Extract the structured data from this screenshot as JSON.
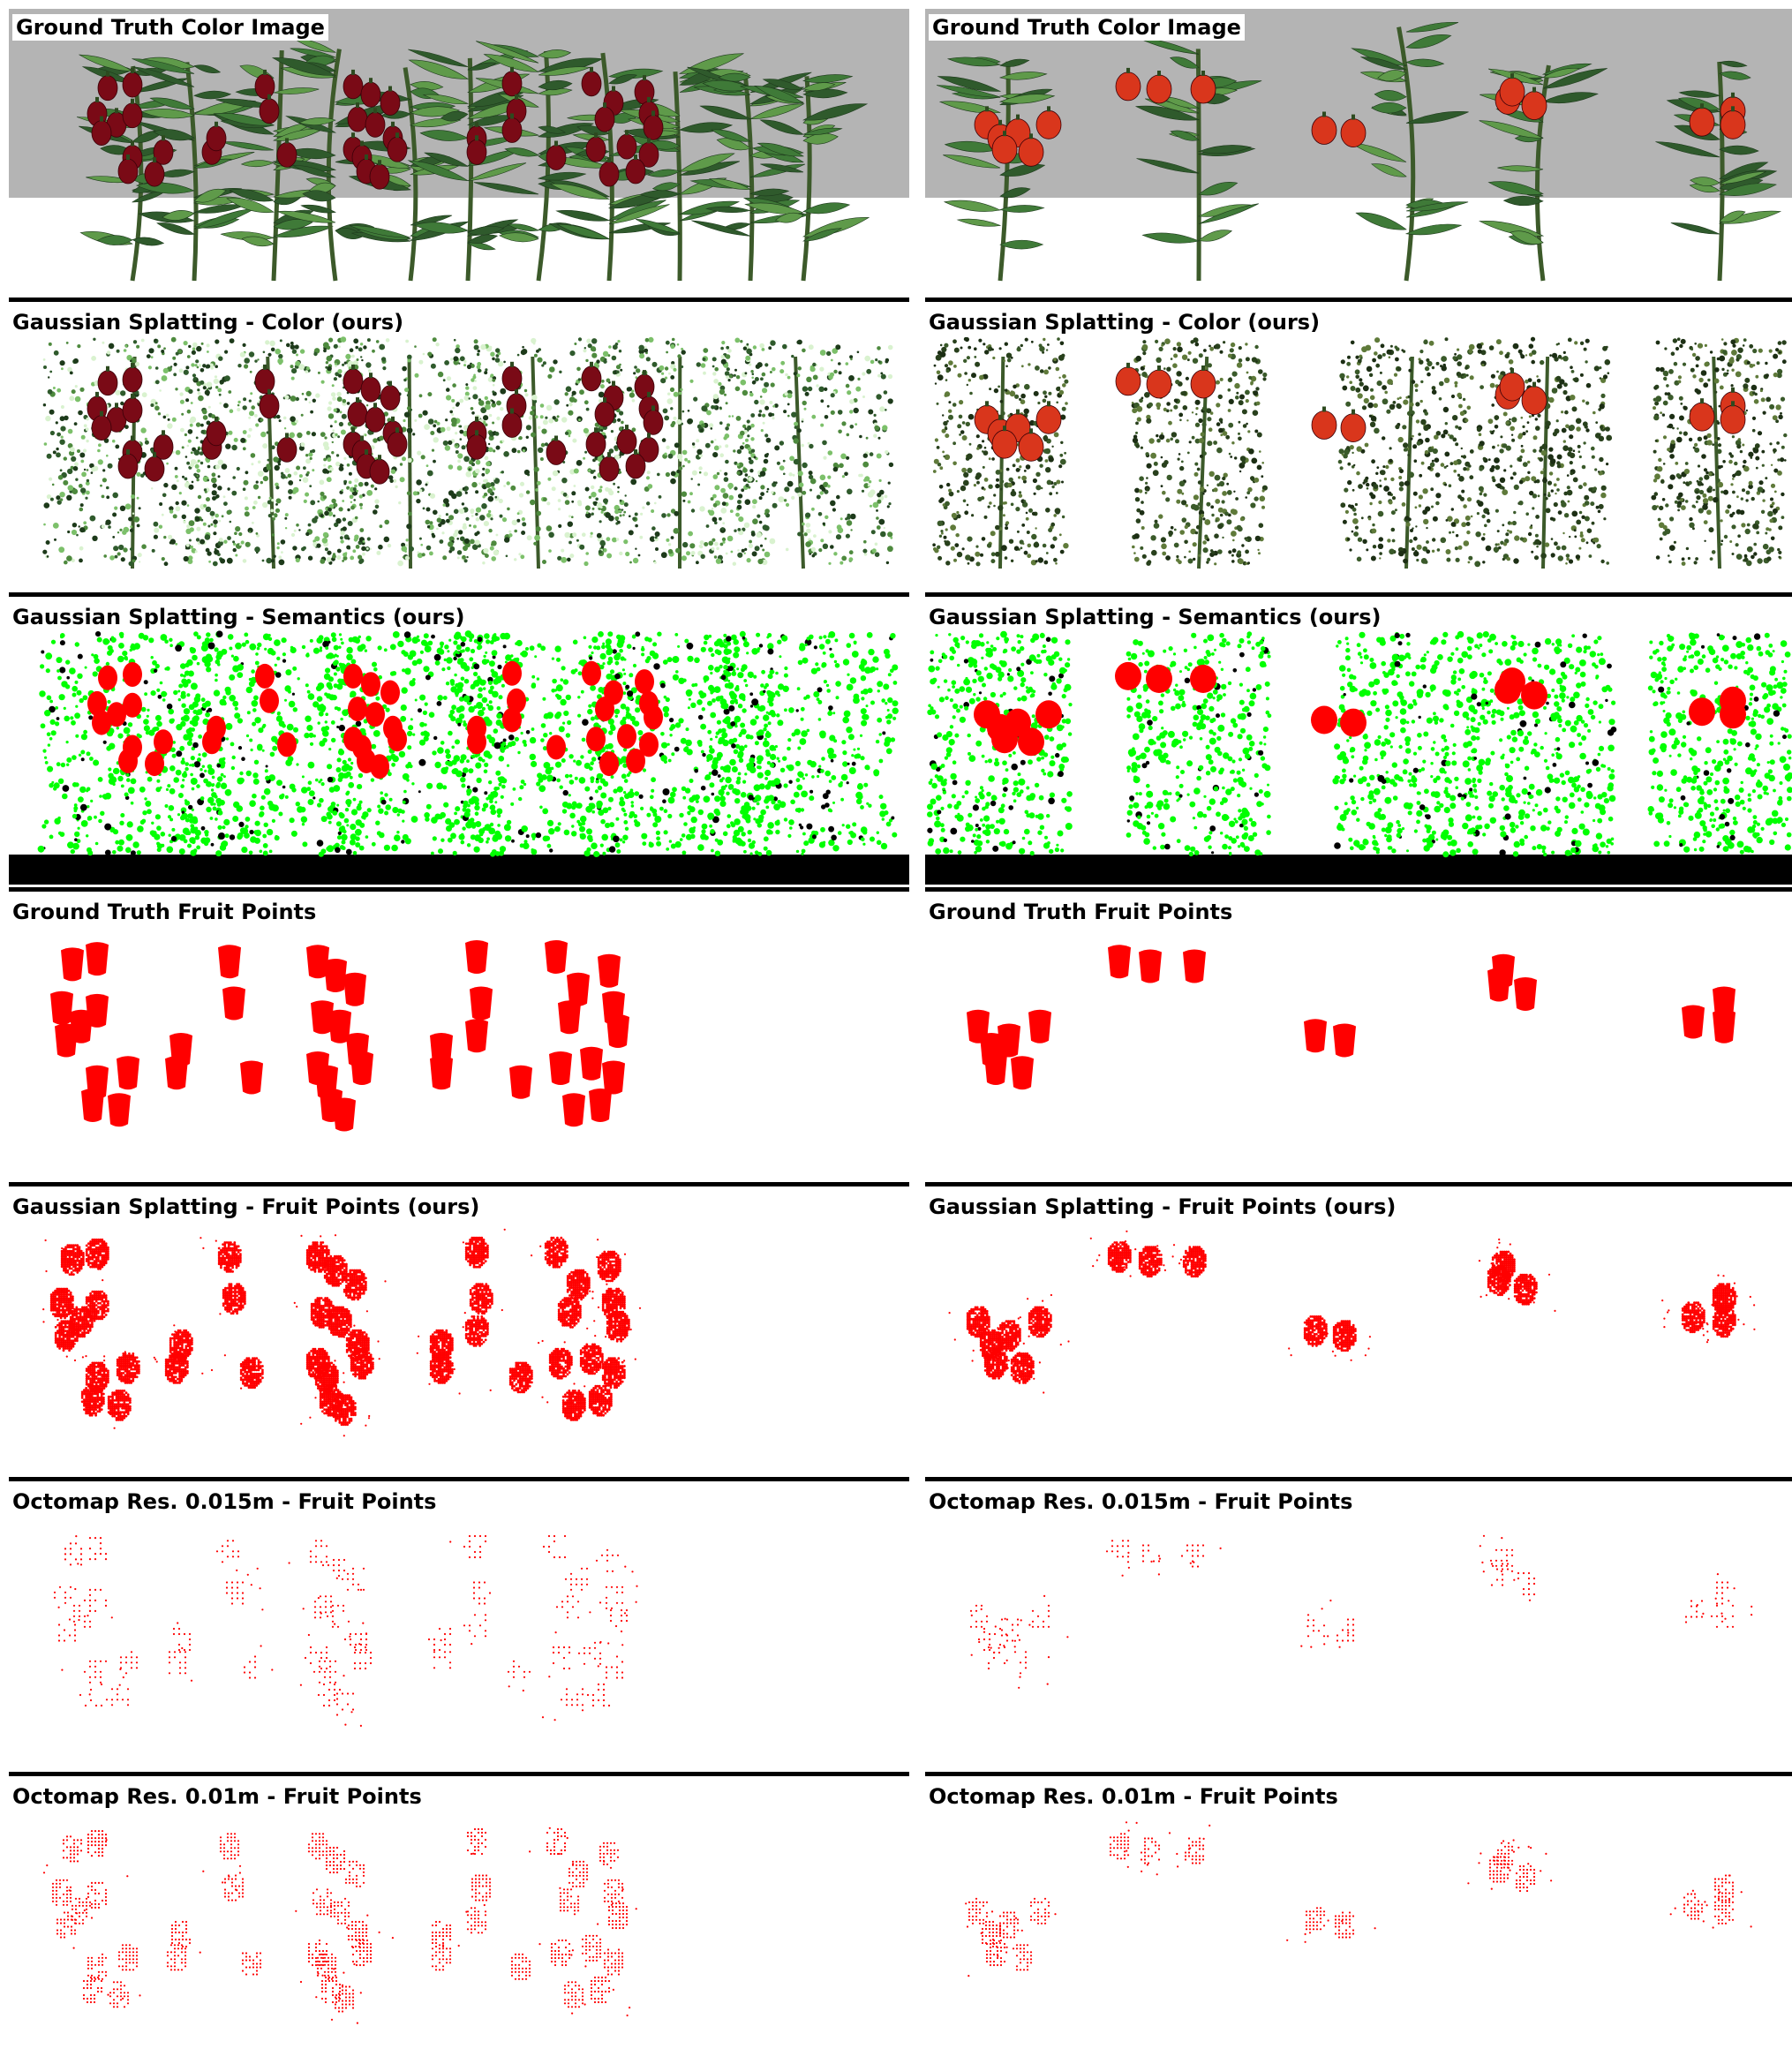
{
  "figure": {
    "colors": {
      "ground_truth_background": "#b4b4b4",
      "floor": "#ffffff",
      "leaf_dark": "#2f5a2c",
      "leaf_light": "#5f9a4a",
      "stem": "#3c5a2a",
      "pepper_dark_red": "#7a0a16",
      "pepper_orange_red": "#d9361c",
      "semantic_plant": "#00ff00",
      "semantic_fruit": "#ff0000",
      "semantic_other": "#000000",
      "fruit_points": "#ff0000",
      "separator": "#000000"
    },
    "left": {
      "scene": "dark-red pepper row",
      "rows": [
        {
          "label": "Ground Truth Color Image",
          "style": "gt-color"
        },
        {
          "label": "Gaussian Splatting - Color (ours)",
          "style": "gs-color"
        },
        {
          "label": "Gaussian Splatting - Semantics (ours)",
          "style": "gs-semantics"
        },
        {
          "label": "Ground Truth Fruit Points",
          "style": "gt-fruit"
        },
        {
          "label": "Gaussian Splatting - Fruit Points (ours)",
          "style": "gs-fruit"
        },
        {
          "label": "Octomap Res. 0.015m - Fruit Points",
          "style": "octo-coarse"
        },
        {
          "label": "Octomap Res. 0.01m - Fruit Points",
          "style": "octo-fine"
        }
      ]
    },
    "right": {
      "scene": "orange-red pepper plants",
      "rows": [
        {
          "label": "Ground Truth Color Image",
          "style": "gt-color"
        },
        {
          "label": "Gaussian Splatting - Color (ours)",
          "style": "gs-color"
        },
        {
          "label": "Gaussian Splatting - Semantics (ours)",
          "style": "gs-semantics"
        },
        {
          "label": "Ground Truth Fruit Points",
          "style": "gt-fruit"
        },
        {
          "label": "Gaussian Splatting - Fruit Points (ours)",
          "style": "gs-fruit"
        },
        {
          "label": "Octomap Res. 0.015m - Fruit Points",
          "style": "octo-coarse"
        },
        {
          "label": "Octomap Res. 0.01m - Fruit Points",
          "style": "octo-fine"
        }
      ]
    }
  }
}
